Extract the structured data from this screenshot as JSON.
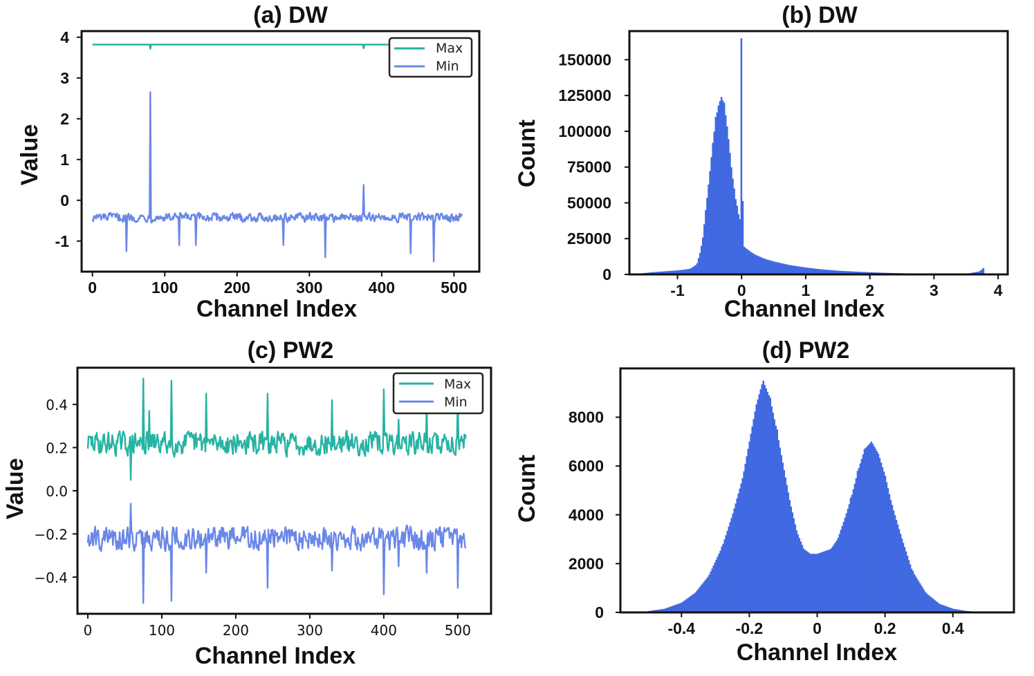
{
  "colors": {
    "max": "#26b3a3",
    "min": "#6a87e8",
    "hist": "#4169e1",
    "axis": "#111111"
  },
  "chart_data": [
    {
      "id": "a",
      "type": "line",
      "title": "(a) DW",
      "xlabel": "Channel Index",
      "ylabel": "Value",
      "xlim": [
        -15,
        535
      ],
      "ylim": [
        -1.75,
        4.15
      ],
      "xticks": [
        0,
        100,
        200,
        300,
        400,
        500
      ],
      "xtick_labels": [
        "0",
        "100",
        "200",
        "300",
        "400",
        "500"
      ],
      "yticks": [
        4,
        3,
        2,
        1,
        0,
        -1
      ],
      "ytick_labels": [
        "4",
        "3",
        "2",
        "1",
        "0",
        "-1"
      ],
      "legend": "top-right",
      "series": [
        {
          "name": "Max",
          "color": "#26b3a3",
          "length": 512,
          "baseline": 3.82,
          "noise": 0,
          "spikes": [
            [
              80,
              3.72
            ],
            [
              375,
              3.73
            ]
          ]
        },
        {
          "name": "Min",
          "color": "#6a87e8",
          "length": 512,
          "baseline": -0.42,
          "noise": 0.08,
          "spikes": [
            [
              47,
              -1.25
            ],
            [
              80,
              2.65
            ],
            [
              120,
              -1.1
            ],
            [
              143,
              -1.1
            ],
            [
              264,
              -1.1
            ],
            [
              322,
              -1.4
            ],
            [
              375,
              0.38
            ],
            [
              440,
              -1.3
            ],
            [
              472,
              -1.5
            ]
          ]
        }
      ]
    },
    {
      "id": "b",
      "type": "histogram",
      "title": "(b) DW",
      "xlabel": "Channel Index",
      "ylabel": "Count",
      "xlim": [
        -1.75,
        4.15
      ],
      "ylim": [
        0,
        170000
      ],
      "xticks": [
        -1,
        0,
        1,
        2,
        3,
        4
      ],
      "xtick_labels": [
        "-1",
        "0",
        "1",
        "2",
        "3",
        "4"
      ],
      "yticks": [
        0,
        25000,
        50000,
        75000,
        100000,
        125000,
        150000
      ],
      "ytick_labels": [
        "0",
        "25000",
        "50000",
        "75000",
        "100000",
        "125000",
        "150000"
      ],
      "color": "#4169e1",
      "bin_centers": [
        -1.55,
        -1.4,
        -1.25,
        -1.1,
        -0.95,
        -0.8,
        -0.7,
        -0.62,
        -0.56,
        -0.5,
        -0.45,
        -0.4,
        -0.36,
        -0.32,
        -0.28,
        -0.24,
        -0.2,
        -0.16,
        -0.12,
        -0.08,
        -0.04,
        -0.01,
        0.0,
        0.02,
        0.1,
        0.2,
        0.35,
        0.5,
        0.75,
        1.0,
        1.25,
        1.5,
        1.75,
        2.0,
        2.25,
        2.5,
        2.75,
        3.0,
        3.25,
        3.5,
        3.7,
        3.78
      ],
      "counts": [
        800,
        1500,
        2000,
        2500,
        3000,
        4000,
        7000,
        20000,
        45000,
        70000,
        92000,
        110000,
        118000,
        124000,
        120000,
        108000,
        92000,
        74000,
        60000,
        48000,
        40000,
        36000,
        165000,
        20000,
        17000,
        14000,
        11000,
        9000,
        6500,
        4800,
        3500,
        2600,
        2000,
        1500,
        1100,
        800,
        600,
        450,
        400,
        400,
        2000,
        4500
      ]
    },
    {
      "id": "c",
      "type": "line",
      "title": "(c) PW2",
      "xlabel": "Channel Index",
      "ylabel": "Value",
      "xlim": [
        -14,
        545
      ],
      "ylim": [
        -0.57,
        0.57
      ],
      "xticks": [
        0,
        100,
        200,
        300,
        400,
        500
      ],
      "xtick_labels": [
        "0",
        "100",
        "200",
        "300",
        "400",
        "500"
      ],
      "yticks": [
        0.4,
        0.2,
        0.0,
        -0.2,
        -0.4
      ],
      "ytick_labels": [
        "0.4",
        "0.2",
        "0.0",
        "−0.2",
        "−0.4"
      ],
      "legend": "top-right",
      "series": [
        {
          "name": "Max",
          "color": "#26b3a3",
          "length": 512,
          "baseline": 0.22,
          "noise": 0.04,
          "spikes": [
            [
              58,
              0.05
            ],
            [
              75,
              0.52
            ],
            [
              83,
              0.37
            ],
            [
              113,
              0.51
            ],
            [
              160,
              0.45
            ],
            [
              243,
              0.45
            ],
            [
              330,
              0.42
            ],
            [
              400,
              0.47
            ],
            [
              420,
              0.33
            ],
            [
              458,
              0.42
            ],
            [
              500,
              0.46
            ],
            [
              515,
              0.45
            ]
          ]
        },
        {
          "name": "Min",
          "color": "#6a87e8",
          "length": 512,
          "baseline": -0.22,
          "noise": 0.04,
          "spikes": [
            [
              58,
              -0.06
            ],
            [
              75,
              -0.52
            ],
            [
              113,
              -0.51
            ],
            [
              160,
              -0.38
            ],
            [
              243,
              -0.45
            ],
            [
              330,
              -0.37
            ],
            [
              400,
              -0.48
            ],
            [
              420,
              -0.35
            ],
            [
              458,
              -0.38
            ],
            [
              500,
              -0.45
            ]
          ]
        }
      ]
    },
    {
      "id": "d",
      "type": "histogram",
      "title": "(d) PW2",
      "xlabel": "Channel Index",
      "ylabel": "Count",
      "xlim": [
        -0.58,
        0.58
      ],
      "ylim": [
        0,
        10000
      ],
      "xticks": [
        -0.4,
        -0.2,
        0,
        0.2,
        0.4
      ],
      "xtick_labels": [
        "-0.4",
        "-0.2",
        "0",
        "0.2",
        "0.4"
      ],
      "yticks": [
        0,
        2000,
        4000,
        6000,
        8000
      ],
      "ytick_labels": [
        "0",
        "2000",
        "4000",
        "6000",
        "8000"
      ],
      "color": "#4169e1",
      "bin_centers": [
        -0.5,
        -0.45,
        -0.4,
        -0.36,
        -0.32,
        -0.28,
        -0.25,
        -0.22,
        -0.2,
        -0.18,
        -0.16,
        -0.14,
        -0.12,
        -0.1,
        -0.08,
        -0.06,
        -0.04,
        -0.02,
        0.0,
        0.02,
        0.04,
        0.06,
        0.08,
        0.1,
        0.12,
        0.14,
        0.16,
        0.18,
        0.2,
        0.22,
        0.25,
        0.28,
        0.32,
        0.36,
        0.4,
        0.44,
        0.48
      ],
      "counts": [
        50,
        150,
        400,
        800,
        1500,
        2700,
        4000,
        5500,
        7000,
        8500,
        9500,
        8800,
        7500,
        6000,
        4500,
        3300,
        2600,
        2400,
        2400,
        2500,
        2600,
        3000,
        3800,
        4700,
        5800,
        6700,
        7000,
        6500,
        5600,
        4400,
        3000,
        1700,
        800,
        350,
        150,
        60,
        20
      ]
    }
  ]
}
